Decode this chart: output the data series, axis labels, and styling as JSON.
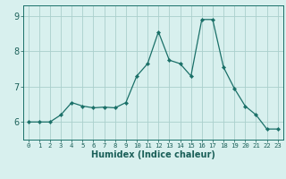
{
  "x": [
    0,
    1,
    2,
    3,
    4,
    5,
    6,
    7,
    8,
    9,
    10,
    11,
    12,
    13,
    14,
    15,
    16,
    17,
    18,
    19,
    20,
    21,
    22,
    23
  ],
  "y": [
    6.0,
    6.0,
    6.0,
    6.2,
    6.55,
    6.45,
    6.4,
    6.42,
    6.4,
    6.55,
    7.3,
    7.65,
    8.55,
    7.75,
    7.65,
    7.3,
    8.9,
    8.9,
    7.55,
    6.95,
    6.45,
    6.2,
    5.8,
    5.8
  ],
  "bg_color": "#d8f0ee",
  "grid_color": "#aacfcc",
  "line_color": "#1a7068",
  "marker_color": "#1a7068",
  "xlabel": "Humidex (Indice chaleur)",
  "ylim_min": 5.5,
  "ylim_max": 9.3,
  "xlim_min": -0.5,
  "xlim_max": 23.5,
  "yticks": [
    6,
    7,
    8,
    9
  ],
  "xticks": [
    0,
    1,
    2,
    3,
    4,
    5,
    6,
    7,
    8,
    9,
    10,
    11,
    12,
    13,
    14,
    15,
    16,
    17,
    18,
    19,
    20,
    21,
    22,
    23
  ],
  "xtick_labels": [
    "0",
    "1",
    "2",
    "3",
    "4",
    "5",
    "6",
    "7",
    "8",
    "9",
    "10",
    "11",
    "12",
    "13",
    "14",
    "15",
    "16",
    "17",
    "18",
    "19",
    "20",
    "21",
    "22",
    "23"
  ],
  "font_color": "#1a5f58",
  "xlabel_fontsize": 7.0,
  "xtick_fontsize": 5.2,
  "ytick_fontsize": 7.0
}
